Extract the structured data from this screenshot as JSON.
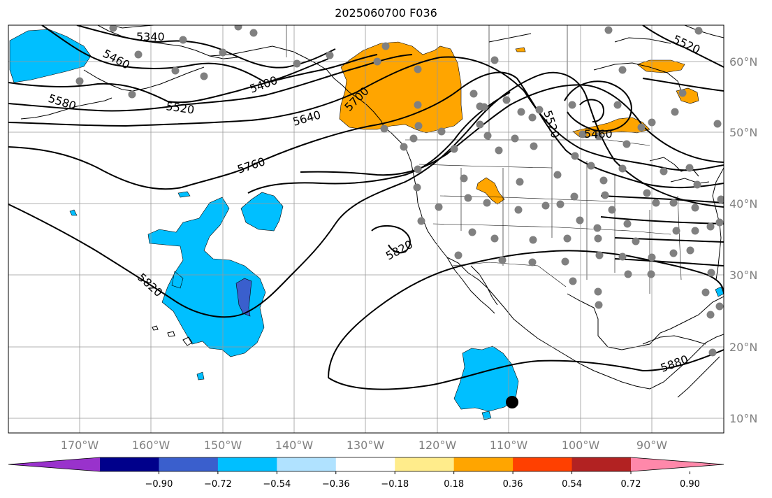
{
  "title": "2025060700 F036",
  "map": {
    "lon_ticks": [
      "170°W",
      "160°W",
      "150°W",
      "140°W",
      "130°W",
      "120°W",
      "110°W",
      "100°W",
      "90°W"
    ],
    "lat_ticks": [
      "60°N",
      "50°N",
      "40°N",
      "30°N",
      "20°N",
      "10°N"
    ]
  },
  "contour_labels": [
    "5340",
    "5460",
    "5400",
    "5520",
    "5580",
    "5640",
    "5700",
    "5760",
    "5820",
    "5820",
    "5520",
    "5460",
    "5520",
    "5880"
  ],
  "colorbar": {
    "colors": [
      "#9932cc",
      "#00008b",
      "#3a5fcd",
      "#00bfff",
      "#b0e2ff",
      "#ffffff",
      "#ffec8b",
      "#ffa500",
      "#ff4000",
      "#b22222",
      "#ff88aa"
    ],
    "tick_labels": [
      "−0.90",
      "−0.72",
      "−0.54",
      "−0.36",
      "−0.18",
      "0.18",
      "0.36",
      "0.54",
      "0.72",
      "0.90"
    ]
  },
  "colors": {
    "positive_fill": "#ffa500",
    "light_positive_fill": "#ffb300",
    "negative_fill": "#00bfff",
    "strong_negative_fill": "#3a5fcd",
    "station_marker": "#808080",
    "storm_marker": "#000000"
  }
}
